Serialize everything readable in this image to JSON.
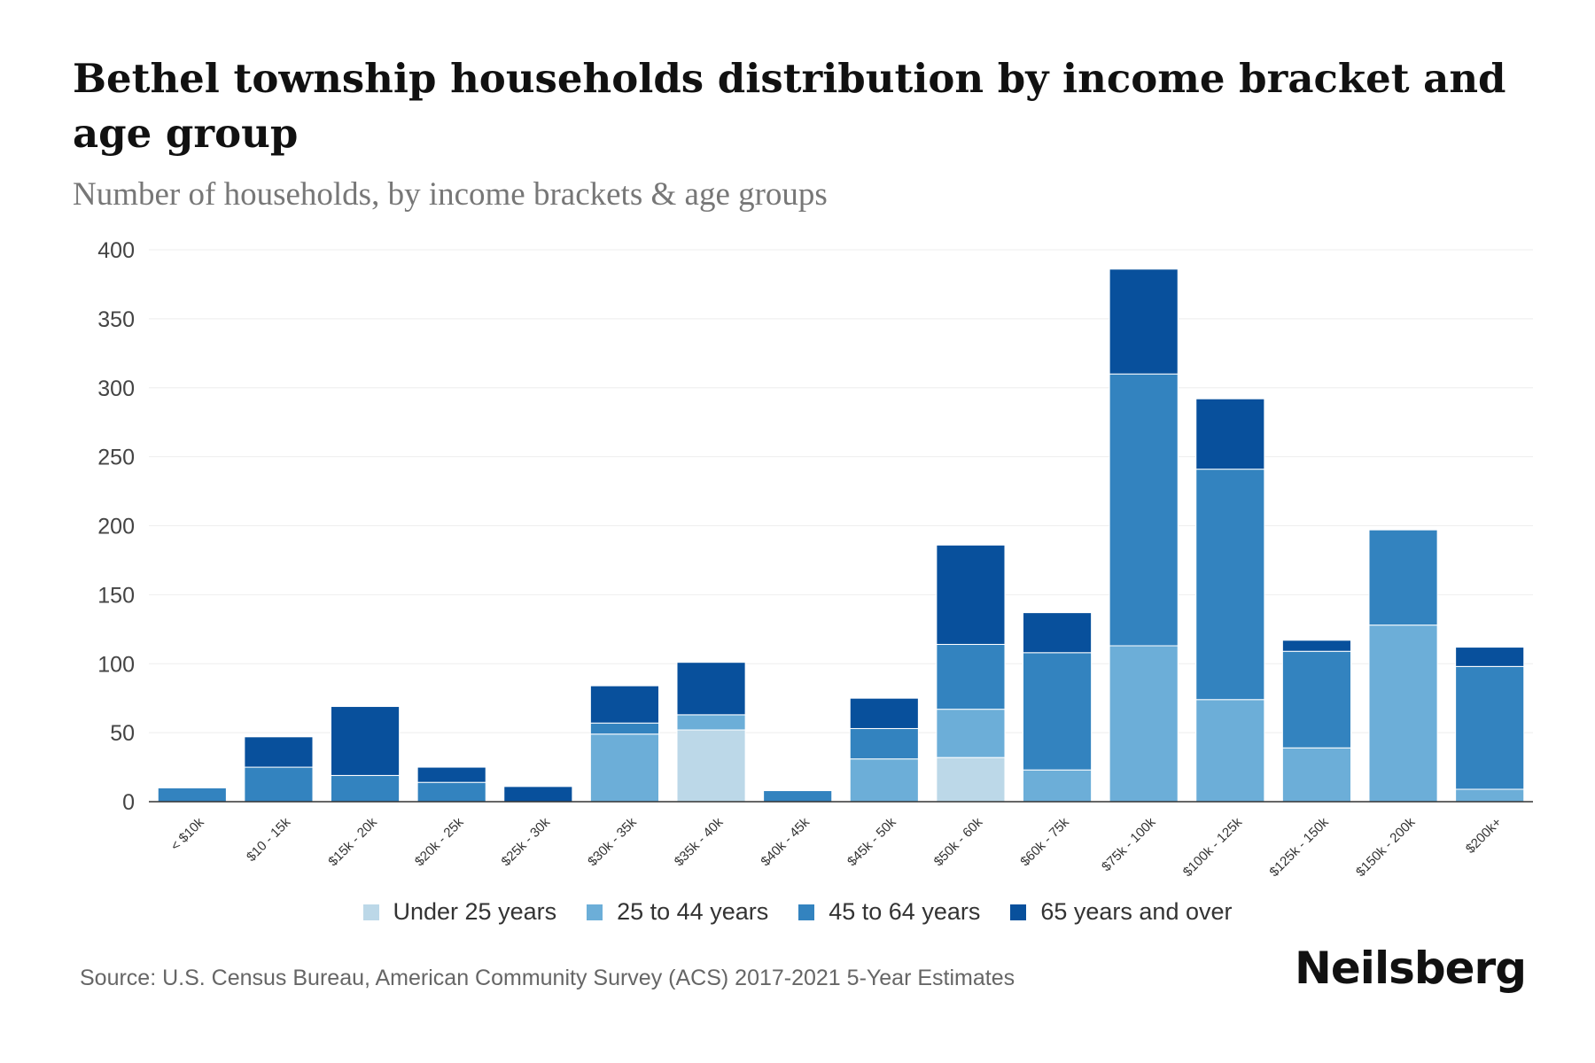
{
  "chart_data": {
    "type": "bar",
    "stacked": true,
    "title": "Bethel township households distribution by income bracket and age group",
    "subtitle": "Number of households, by income brackets & age groups",
    "xlabel": "",
    "ylabel": "",
    "ylim": [
      0,
      400
    ],
    "yticks": [
      0,
      50,
      100,
      150,
      200,
      250,
      300,
      350,
      400
    ],
    "grid": true,
    "legend_position": "bottom",
    "categories": [
      "< $10k",
      "$10 - 15k",
      "$15k - 20k",
      "$20k - 25k",
      "$25k - 30k",
      "$30k - 35k",
      "$35k - 40k",
      "$40k - 45k",
      "$45k - 50k",
      "$50k - 60k",
      "$60k - 75k",
      "$75k - 100k",
      "$100k - 125k",
      "$125k - 150k",
      "$150k - 200k",
      "$200k+"
    ],
    "series": [
      {
        "name": "Under 25 years",
        "color": "#bcd8e8",
        "values": [
          0,
          0,
          0,
          0,
          0,
          0,
          52,
          0,
          0,
          32,
          0,
          0,
          0,
          0,
          0,
          0
        ]
      },
      {
        "name": "25 to 44 years",
        "color": "#6caed8",
        "values": [
          0,
          0,
          0,
          0,
          0,
          49,
          11,
          0,
          31,
          35,
          23,
          113,
          74,
          39,
          128,
          9
        ]
      },
      {
        "name": "45 to 64 years",
        "color": "#3383bf",
        "values": [
          10,
          25,
          19,
          14,
          0,
          8,
          0,
          8,
          22,
          47,
          85,
          197,
          167,
          70,
          69,
          89
        ]
      },
      {
        "name": "65 years and over",
        "color": "#08509c",
        "values": [
          0,
          22,
          50,
          11,
          11,
          27,
          38,
          0,
          22,
          72,
          29,
          76,
          51,
          8,
          0,
          14
        ]
      }
    ]
  },
  "source": "Source: U.S. Census Bureau, American Community Survey (ACS) 2017-2021 5-Year Estimates",
  "brand": "Neilsberg"
}
